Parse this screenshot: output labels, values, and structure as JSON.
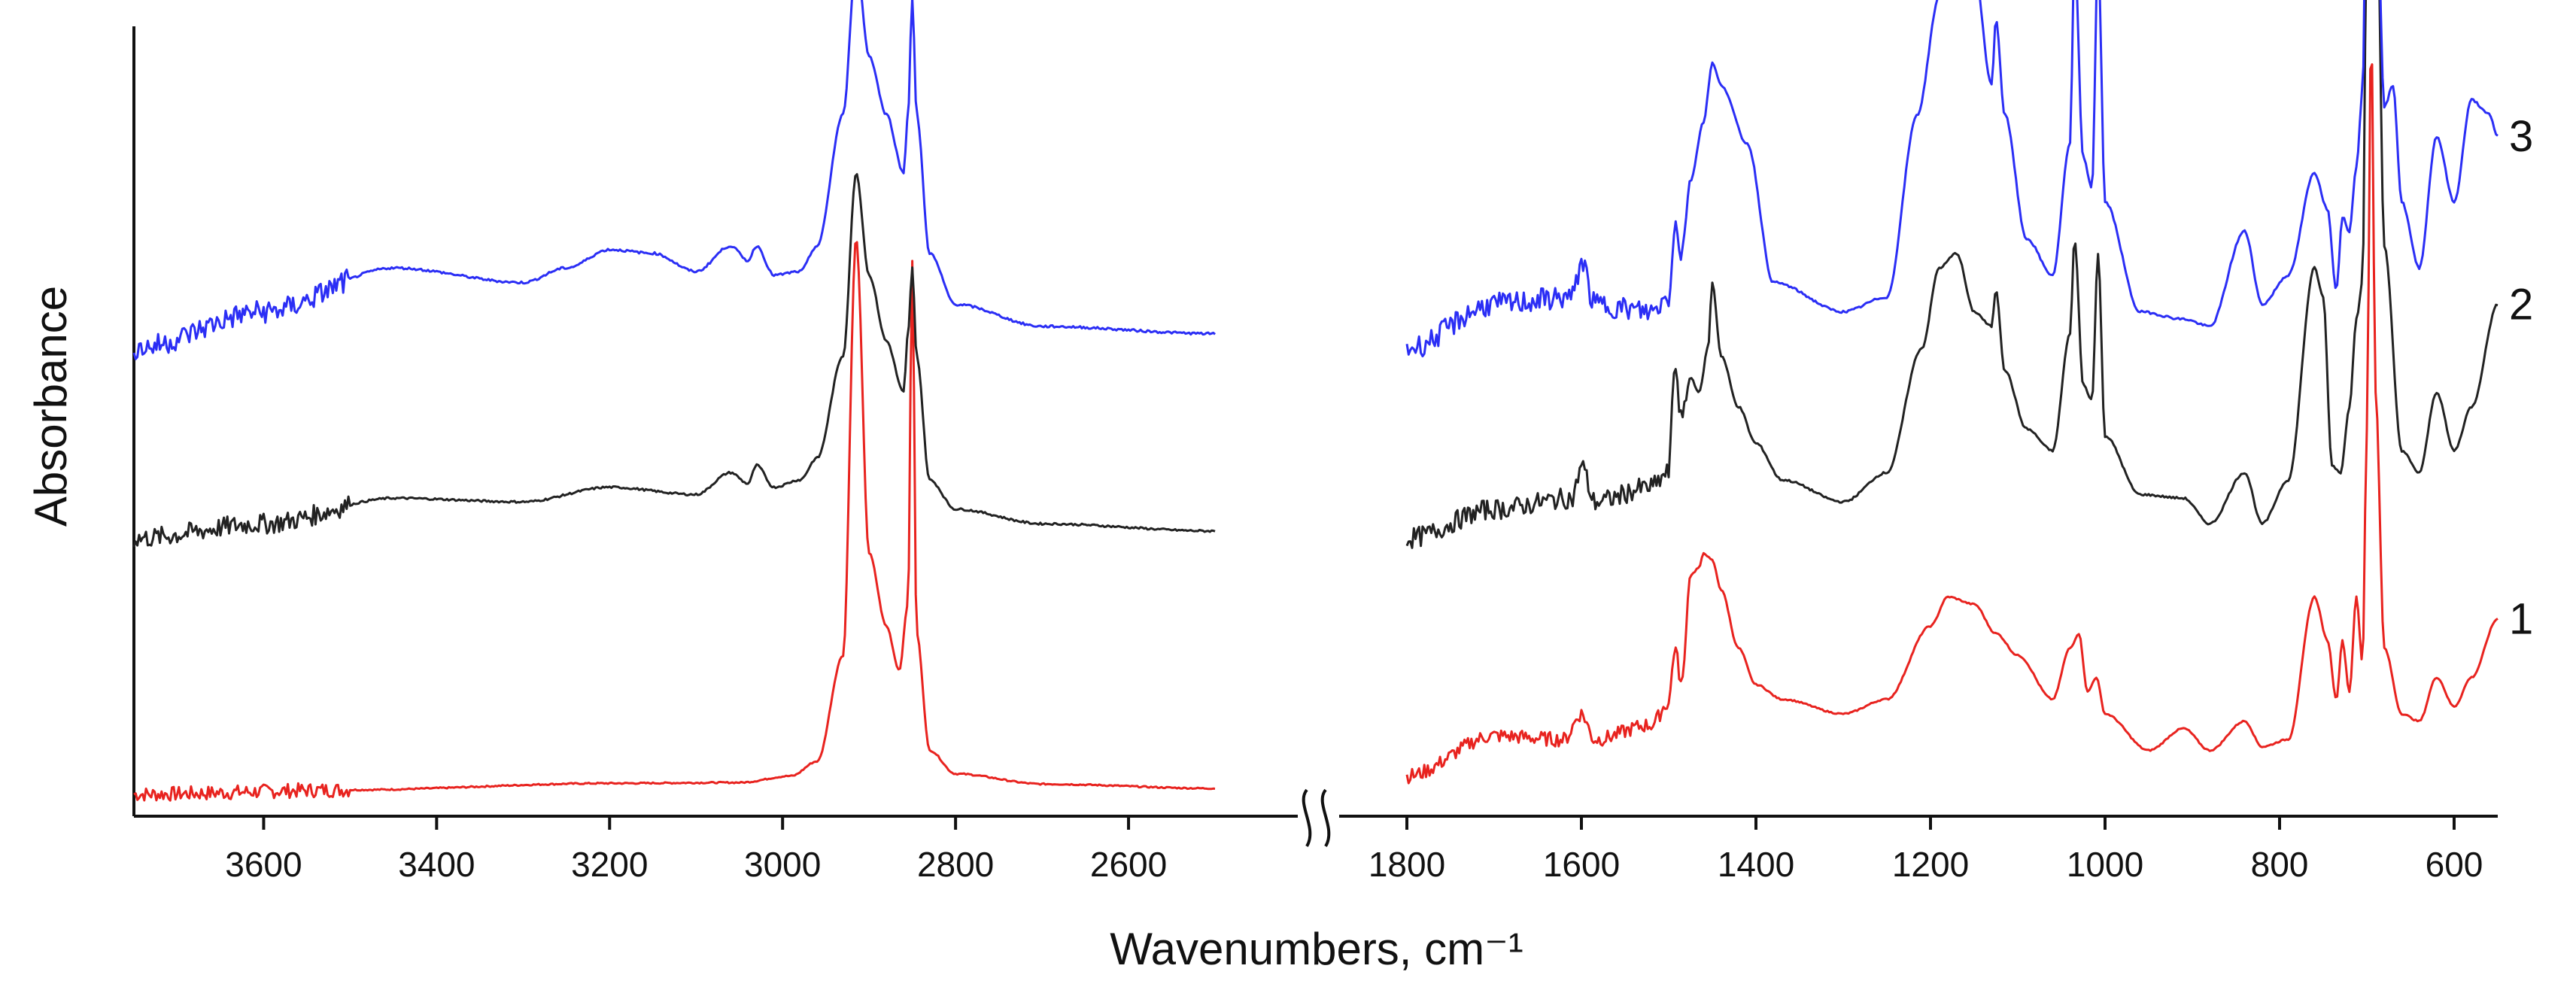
{
  "chart_data": {
    "type": "line",
    "title": "",
    "xlabel": "Wavenumbers, cm⁻¹",
    "ylabel": "Absorbance",
    "x_direction": "descending",
    "axis_break": [
      2500,
      1800
    ],
    "xlim_segments": [
      [
        3750,
        2500
      ],
      [
        1800,
        550
      ]
    ],
    "ylim": [
      0,
      10
    ],
    "grid": false,
    "legend": "series labels at right end of each curve",
    "x_ticks_left": [
      "3600",
      "3400",
      "3200",
      "3000",
      "2800",
      "2600"
    ],
    "x_ticks_right": [
      "1800",
      "1600",
      "1400",
      "1200",
      "1000",
      "800",
      "600"
    ],
    "series": [
      {
        "name": "1",
        "color": "#e8231f",
        "offset": 0.3,
        "noise": 0.05,
        "points": [
          [
            3750,
            0.0
          ],
          [
            3500,
            0.06
          ],
          [
            3200,
            0.15
          ],
          [
            3050,
            0.16
          ],
          [
            2990,
            0.25
          ],
          [
            2960,
            0.45
          ],
          [
            2930,
            1.9
          ],
          [
            2915,
            7.6
          ],
          [
            2900,
            3.3
          ],
          [
            2880,
            2.3
          ],
          [
            2865,
            1.7
          ],
          [
            2855,
            2.6
          ],
          [
            2850,
            7.3
          ],
          [
            2845,
            2.2
          ],
          [
            2830,
            0.6
          ],
          [
            2800,
            0.28
          ],
          [
            2700,
            0.14
          ],
          [
            2500,
            0.08
          ],
          [
            1800,
            0.25
          ],
          [
            1700,
            0.8
          ],
          [
            1620,
            0.75
          ],
          [
            1600,
            1.1
          ],
          [
            1585,
            0.75
          ],
          [
            1520,
            0.95
          ],
          [
            1500,
            1.25
          ],
          [
            1493,
            2.0
          ],
          [
            1485,
            1.5
          ],
          [
            1475,
            3.0
          ],
          [
            1465,
            3.1
          ],
          [
            1460,
            3.3
          ],
          [
            1450,
            3.2
          ],
          [
            1440,
            2.8
          ],
          [
            1420,
            2.0
          ],
          [
            1400,
            1.5
          ],
          [
            1370,
            1.3
          ],
          [
            1300,
            1.1
          ],
          [
            1250,
            1.3
          ],
          [
            1200,
            2.3
          ],
          [
            1180,
            2.7
          ],
          [
            1150,
            2.6
          ],
          [
            1125,
            2.2
          ],
          [
            1100,
            1.9
          ],
          [
            1060,
            1.3
          ],
          [
            1040,
            2.0
          ],
          [
            1030,
            2.2
          ],
          [
            1020,
            1.4
          ],
          [
            1010,
            1.6
          ],
          [
            1000,
            1.1
          ],
          [
            950,
            0.6
          ],
          [
            910,
            0.9
          ],
          [
            880,
            0.6
          ],
          [
            840,
            1.0
          ],
          [
            820,
            0.65
          ],
          [
            790,
            0.75
          ],
          [
            760,
            2.7
          ],
          [
            745,
            2.1
          ],
          [
            735,
            1.3
          ],
          [
            728,
            2.1
          ],
          [
            720,
            1.4
          ],
          [
            712,
            2.7
          ],
          [
            705,
            1.8
          ],
          [
            700,
            5.0
          ],
          [
            695,
            10.5
          ],
          [
            690,
            5.5
          ],
          [
            680,
            2.0
          ],
          [
            660,
            1.1
          ],
          [
            640,
            1.0
          ],
          [
            620,
            1.6
          ],
          [
            600,
            1.2
          ],
          [
            580,
            1.6
          ],
          [
            550,
            2.4
          ]
        ]
      },
      {
        "name": "2",
        "color": "#222222",
        "offset": 3.8,
        "noise": 0.07,
        "points": [
          [
            3750,
            0.0
          ],
          [
            3600,
            0.2
          ],
          [
            3450,
            0.55
          ],
          [
            3300,
            0.5
          ],
          [
            3200,
            0.7
          ],
          [
            3100,
            0.6
          ],
          [
            3060,
            0.9
          ],
          [
            3040,
            0.75
          ],
          [
            3030,
            1.0
          ],
          [
            3010,
            0.7
          ],
          [
            2980,
            0.8
          ],
          [
            2960,
            1.1
          ],
          [
            2930,
            2.5
          ],
          [
            2915,
            5.0
          ],
          [
            2900,
            3.6
          ],
          [
            2880,
            2.7
          ],
          [
            2860,
            2.0
          ],
          [
            2855,
            2.8
          ],
          [
            2850,
            3.7
          ],
          [
            2845,
            2.5
          ],
          [
            2830,
            0.8
          ],
          [
            2800,
            0.4
          ],
          [
            2700,
            0.2
          ],
          [
            2500,
            0.1
          ],
          [
            1800,
            0.0
          ],
          [
            1700,
            0.4
          ],
          [
            1610,
            0.55
          ],
          [
            1600,
            1.0
          ],
          [
            1585,
            0.5
          ],
          [
            1520,
            0.7
          ],
          [
            1500,
            0.9
          ],
          [
            1493,
            2.4
          ],
          [
            1485,
            1.6
          ],
          [
            1475,
            2.2
          ],
          [
            1465,
            2.0
          ],
          [
            1455,
            2.6
          ],
          [
            1450,
            3.5
          ],
          [
            1440,
            2.5
          ],
          [
            1420,
            1.8
          ],
          [
            1400,
            1.3
          ],
          [
            1370,
            0.8
          ],
          [
            1300,
            0.5
          ],
          [
            1250,
            0.9
          ],
          [
            1210,
            2.6
          ],
          [
            1190,
            3.7
          ],
          [
            1170,
            3.9
          ],
          [
            1150,
            3.1
          ],
          [
            1130,
            2.9
          ],
          [
            1125,
            3.4
          ],
          [
            1115,
            2.3
          ],
          [
            1090,
            1.5
          ],
          [
            1060,
            1.2
          ],
          [
            1040,
            2.8
          ],
          [
            1035,
            4.1
          ],
          [
            1025,
            2.1
          ],
          [
            1015,
            1.9
          ],
          [
            1008,
            3.9
          ],
          [
            1000,
            1.4
          ],
          [
            960,
            0.6
          ],
          [
            910,
            0.55
          ],
          [
            880,
            0.2
          ],
          [
            840,
            0.9
          ],
          [
            820,
            0.2
          ],
          [
            790,
            0.8
          ],
          [
            760,
            3.7
          ],
          [
            750,
            3.3
          ],
          [
            740,
            1.0
          ],
          [
            730,
            0.9
          ],
          [
            720,
            1.8
          ],
          [
            712,
            3.0
          ],
          [
            705,
            3.5
          ],
          [
            700,
            8.5
          ],
          [
            695,
            13.0
          ],
          [
            690,
            10.0
          ],
          [
            680,
            4.0
          ],
          [
            660,
            1.2
          ],
          [
            640,
            0.9
          ],
          [
            620,
            2.0
          ],
          [
            600,
            1.2
          ],
          [
            580,
            1.8
          ],
          [
            550,
            3.2
          ]
        ]
      },
      {
        "name": "3",
        "color": "#2b2ef5",
        "offset": 6.4,
        "noise": 0.08,
        "points": [
          [
            3750,
            0.0
          ],
          [
            3600,
            0.5
          ],
          [
            3450,
            1.1
          ],
          [
            3300,
            0.9
          ],
          [
            3250,
            1.1
          ],
          [
            3200,
            1.35
          ],
          [
            3150,
            1.3
          ],
          [
            3100,
            1.05
          ],
          [
            3060,
            1.4
          ],
          [
            3040,
            1.2
          ],
          [
            3030,
            1.4
          ],
          [
            3010,
            1.0
          ],
          [
            2980,
            1.05
          ],
          [
            2960,
            1.4
          ],
          [
            2930,
            3.2
          ],
          [
            2915,
            5.3
          ],
          [
            2900,
            4.0
          ],
          [
            2880,
            3.2
          ],
          [
            2860,
            2.4
          ],
          [
            2855,
            3.2
          ],
          [
            2850,
            4.8
          ],
          [
            2845,
            3.2
          ],
          [
            2830,
            1.3
          ],
          [
            2800,
            0.6
          ],
          [
            2700,
            0.3
          ],
          [
            2500,
            0.2
          ],
          [
            1800,
            0.0
          ],
          [
            1700,
            0.6
          ],
          [
            1610,
            0.7
          ],
          [
            1600,
            1.2
          ],
          [
            1585,
            0.6
          ],
          [
            1520,
            0.5
          ],
          [
            1500,
            0.7
          ],
          [
            1493,
            1.7
          ],
          [
            1485,
            1.3
          ],
          [
            1475,
            2.3
          ],
          [
            1460,
            3.1
          ],
          [
            1450,
            3.9
          ],
          [
            1440,
            3.6
          ],
          [
            1410,
            2.8
          ],
          [
            1380,
            0.9
          ],
          [
            1300,
            0.5
          ],
          [
            1250,
            0.7
          ],
          [
            1215,
            3.2
          ],
          [
            1190,
            4.8
          ],
          [
            1170,
            5.7
          ],
          [
            1150,
            5.2
          ],
          [
            1130,
            3.6
          ],
          [
            1125,
            4.5
          ],
          [
            1115,
            3.2
          ],
          [
            1090,
            1.5
          ],
          [
            1060,
            1.0
          ],
          [
            1040,
            2.8
          ],
          [
            1035,
            5.4
          ],
          [
            1025,
            2.6
          ],
          [
            1015,
            2.2
          ],
          [
            1008,
            5.4
          ],
          [
            1000,
            2.0
          ],
          [
            960,
            0.5
          ],
          [
            910,
            0.4
          ],
          [
            880,
            0.3
          ],
          [
            840,
            1.6
          ],
          [
            820,
            0.6
          ],
          [
            790,
            1.0
          ],
          [
            760,
            2.4
          ],
          [
            745,
            1.9
          ],
          [
            735,
            0.8
          ],
          [
            728,
            1.8
          ],
          [
            720,
            1.6
          ],
          [
            712,
            2.5
          ],
          [
            705,
            3.5
          ],
          [
            700,
            7.0
          ],
          [
            695,
            10.7
          ],
          [
            690,
            7.0
          ],
          [
            680,
            3.3
          ],
          [
            670,
            3.6
          ],
          [
            660,
            2.0
          ],
          [
            640,
            1.1
          ],
          [
            620,
            2.9
          ],
          [
            600,
            2.0
          ],
          [
            580,
            3.4
          ],
          [
            560,
            3.2
          ],
          [
            550,
            2.9
          ]
        ]
      }
    ]
  }
}
